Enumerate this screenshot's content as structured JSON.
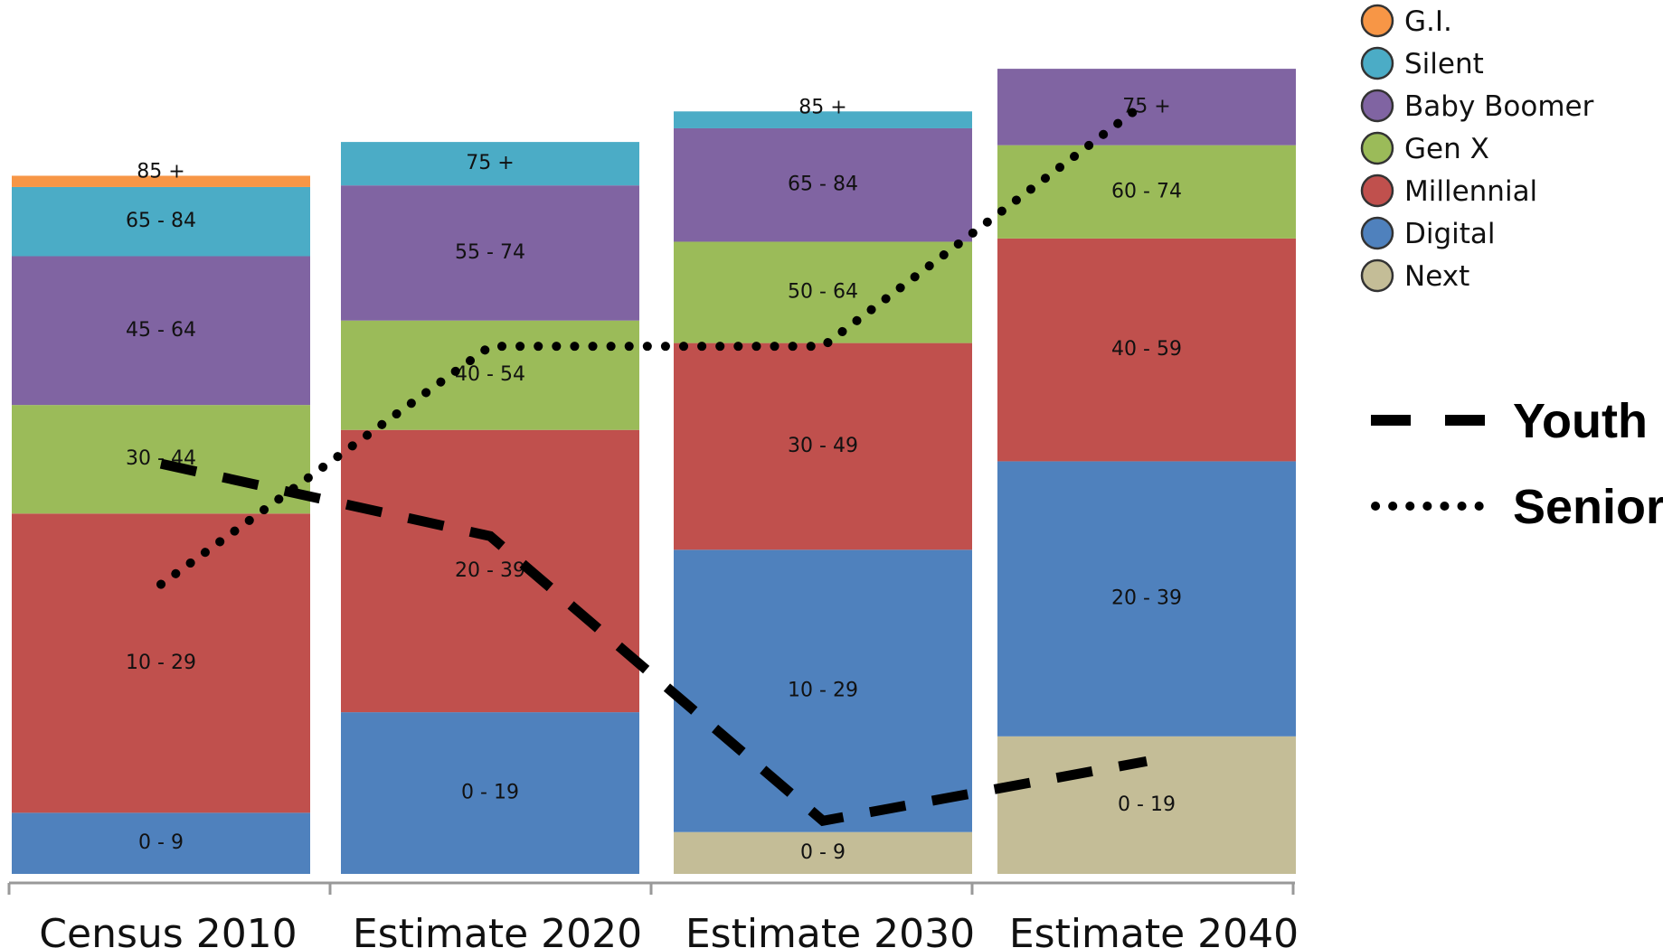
{
  "chart_data": {
    "type": "bar",
    "stacked": true,
    "title": "",
    "xlabel": "",
    "ylabel": "",
    "categories": [
      "Census 2010",
      "Estimate 2020",
      "Estimate 2030",
      "Estimate 2040"
    ],
    "ylim": [
      0,
      100
    ],
    "grid": false,
    "legend_position": "top-right",
    "series": [
      {
        "name": "G.I.",
        "color": "#F79646",
        "values": [
          1.4,
          0,
          0,
          0
        ],
        "labels": [
          "85 +",
          "",
          "",
          ""
        ]
      },
      {
        "name": "Silent",
        "color": "#4BACC6",
        "values": [
          8.6,
          5.4,
          2.1,
          0
        ],
        "labels": [
          "65 - 84",
          "75 +",
          "85 +",
          ""
        ]
      },
      {
        "name": "Baby Boomer",
        "color": "#8064A2",
        "values": [
          18.5,
          16.8,
          14.1,
          9.5
        ],
        "labels": [
          "45 - 64",
          "55 - 74",
          "65 - 84",
          "75 +"
        ]
      },
      {
        "name": "Gen X",
        "color": "#9BBB59",
        "values": [
          13.5,
          13.6,
          12.6,
          11.6
        ],
        "labels": [
          "30 - 44",
          "40 - 54",
          "50 - 64",
          "60 - 74"
        ]
      },
      {
        "name": "Millennial",
        "color": "#C0504D",
        "values": [
          37.2,
          35.1,
          25.7,
          27.7
        ],
        "labels": [
          "10 - 29",
          "20 - 39",
          "30 - 49",
          "40 - 59"
        ]
      },
      {
        "name": "Digital",
        "color": "#4F81BD",
        "values": [
          7.6,
          20.1,
          35.1,
          34.2
        ],
        "labels": [
          "0 - 9",
          "0 - 19",
          "10 - 29",
          "20 - 39"
        ]
      },
      {
        "name": "Next",
        "color": "#C4BD97",
        "values": [
          0,
          0,
          5.2,
          17.1
        ],
        "labels": [
          "",
          "",
          "0 - 9",
          "0 - 19"
        ]
      }
    ],
    "lines": [
      {
        "name": "Youth",
        "style": "dashed",
        "color": "#000000",
        "values": [
          51,
          42,
          6.6,
          14
        ]
      },
      {
        "name": "Senior",
        "style": "dotted",
        "color": "#000000",
        "values": [
          36,
          65.6,
          65.6,
          96
        ]
      }
    ]
  }
}
